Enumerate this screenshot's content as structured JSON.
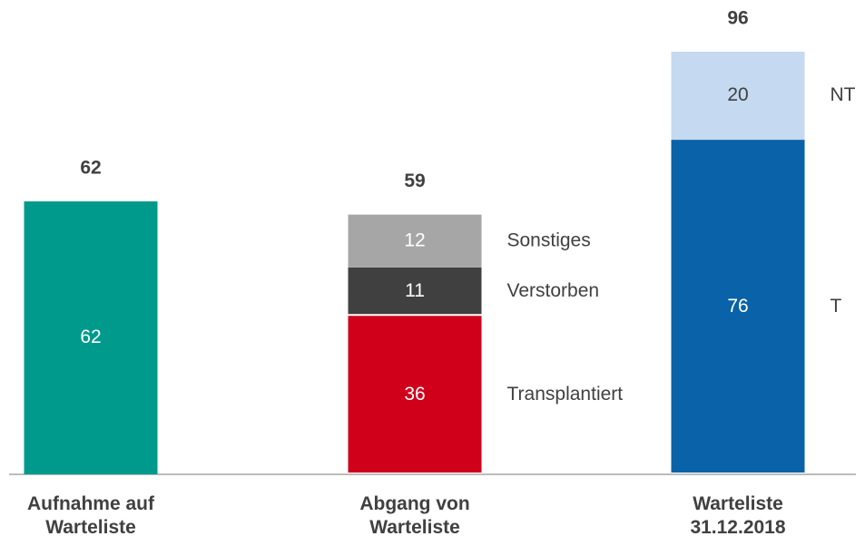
{
  "chart_data": {
    "type": "stacked_bar",
    "categories": [
      "Aufnahme auf\nWarteliste",
      "Abgang von\nWarteliste",
      "Warteliste\n31.12.2018"
    ],
    "totals": [
      62,
      59,
      96
    ],
    "series": [
      {
        "color": "#009a8c",
        "values": [
          62,
          null,
          null
        ]
      },
      {
        "name": "Transplantiert",
        "color": "#d0001b",
        "values": [
          null,
          36,
          null
        ]
      },
      {
        "name": "Verstorben",
        "color": "#404040",
        "values": [
          null,
          11,
          null
        ]
      },
      {
        "name": "Sonstiges",
        "color": "#a6a6a6",
        "values": [
          null,
          12,
          null
        ]
      },
      {
        "name": "T",
        "color": "#0a62a8",
        "values": [
          null,
          null,
          76
        ]
      },
      {
        "name": "NT",
        "color": "#c5d9f0",
        "values": [
          null,
          null,
          20
        ]
      }
    ]
  }
}
